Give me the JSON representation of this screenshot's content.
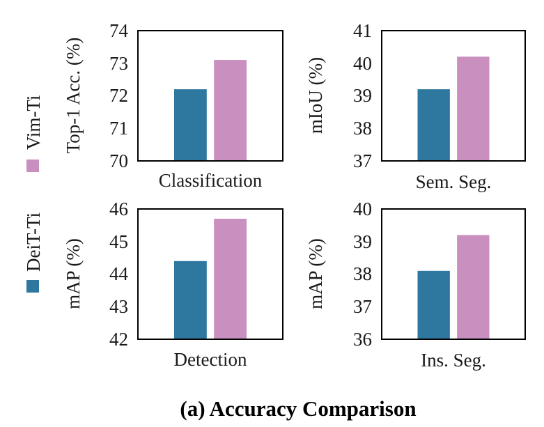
{
  "figure_title": "(a) Accuracy Comparison",
  "legend": [
    {
      "name": "Vim-Ti",
      "color": "#c98fbe"
    },
    {
      "name": "DeiT-Ti",
      "color": "#2e779f"
    }
  ],
  "chart_data": [
    {
      "type": "bar",
      "title": "",
      "categories": [
        "Classification"
      ],
      "xlabel": "Classification",
      "ylabel": "Top-1 Acc. (%)",
      "ylim": [
        70,
        74
      ],
      "yticks": [
        "70",
        "71",
        "72",
        "73",
        "74"
      ],
      "series": [
        {
          "name": "DeiT-Ti",
          "values": [
            72.2
          ]
        },
        {
          "name": "Vim-Ti",
          "values": [
            73.1
          ]
        }
      ]
    },
    {
      "type": "bar",
      "title": "",
      "categories": [
        "Sem. Seg."
      ],
      "xlabel": "Sem. Seg.",
      "ylabel": "mIoU (%)",
      "ylim": [
        37,
        41
      ],
      "yticks": [
        "37",
        "38",
        "39",
        "40",
        "41"
      ],
      "series": [
        {
          "name": "DeiT-Ti",
          "values": [
            39.2
          ]
        },
        {
          "name": "Vim-Ti",
          "values": [
            40.2
          ]
        }
      ]
    },
    {
      "type": "bar",
      "title": "",
      "categories": [
        "Detection"
      ],
      "xlabel": "Detection",
      "ylabel": "mAP (%)",
      "ylim": [
        42,
        46
      ],
      "yticks": [
        "42",
        "43",
        "44",
        "45",
        "46"
      ],
      "series": [
        {
          "name": "DeiT-Ti",
          "values": [
            44.4
          ]
        },
        {
          "name": "Vim-Ti",
          "values": [
            45.7
          ]
        }
      ]
    },
    {
      "type": "bar",
      "title": "",
      "categories": [
        "Ins. Seg."
      ],
      "xlabel": "Ins. Seg.",
      "ylabel": "mAP (%)",
      "ylim": [
        36,
        40
      ],
      "yticks": [
        "36",
        "37",
        "38",
        "39",
        "40"
      ],
      "series": [
        {
          "name": "DeiT-Ti",
          "values": [
            38.1
          ]
        },
        {
          "name": "Vim-Ti",
          "values": [
            39.2
          ]
        }
      ]
    }
  ]
}
